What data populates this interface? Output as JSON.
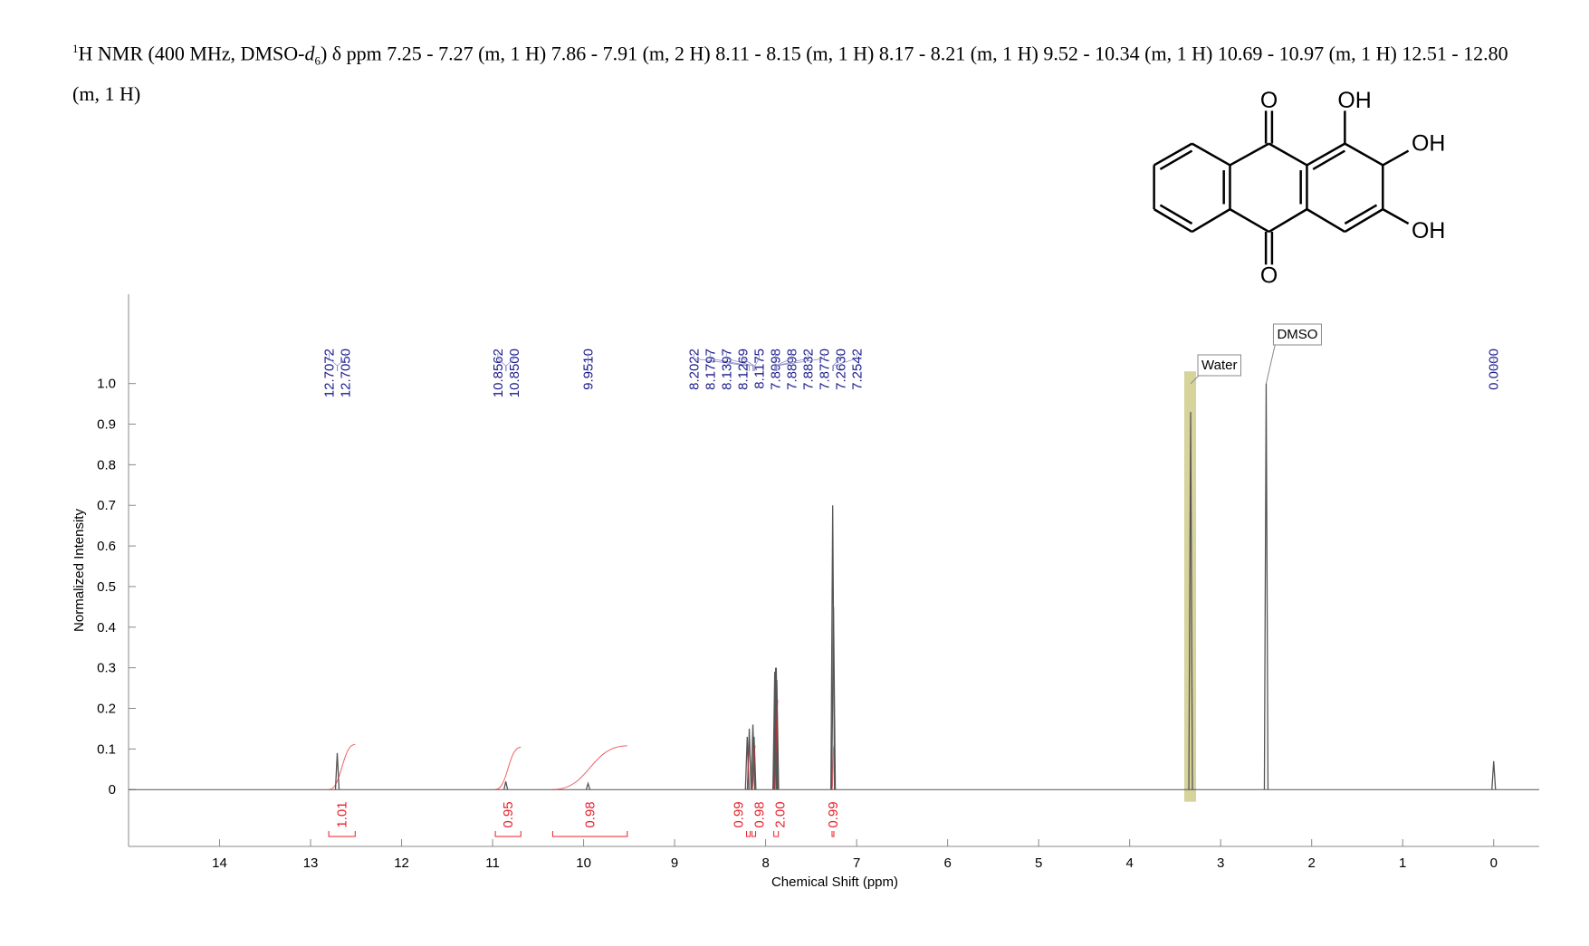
{
  "header": {
    "mass": "1",
    "text_1": "H NMR (400 MHz, DMSO-",
    "italic": "d",
    "subscript": "6",
    "text_2": ") δ ppm 7.25 - 7.27 (m, 1 H) 7.86 - 7.91 (m, 2 H) 8.11 - 8.15 (m, 1 H) 8.17 - 8.21 (m, 1 H) 9.52 - 10.34 (m, 1 H) 10.69 - 10.97 (m, 1 H) 12.51 - 12.80 (m, 1 H)"
  },
  "structure": {
    "atoms": [
      "O",
      "OH",
      "OH",
      "OH",
      "O"
    ]
  },
  "chart_data": {
    "type": "nmr",
    "x_label": "Chemical Shift (ppm)",
    "y_label": "Normalized Intensity",
    "xlim": [
      15,
      -0.5
    ],
    "xticks": [
      14,
      13,
      12,
      11,
      10,
      9,
      8,
      7,
      6,
      5,
      4,
      3,
      2,
      1,
      0
    ],
    "ylim": [
      -0.14,
      1.22
    ],
    "yticks": [
      0,
      0.1,
      0.2,
      0.3,
      0.4,
      0.5,
      0.6,
      0.7,
      0.8,
      0.9,
      {
        "value": 1,
        "label": "1.0"
      }
    ],
    "color": "#555555",
    "peaks": {
      "x": [
        12.707,
        10.855,
        9.951,
        8.2022,
        8.1797,
        8.1397,
        8.1269,
        7.8998,
        7.8898,
        7.8832,
        7.877,
        7.263,
        7.2542,
        3.33,
        2.5,
        0
      ],
      "values": [
        0.09,
        0.02,
        0.015,
        0.13,
        0.15,
        0.16,
        0.13,
        0.29,
        0.3,
        0.3,
        0.27,
        0.7,
        0.45,
        0.93,
        1.0,
        0.07
      ]
    },
    "peak_labels": {
      "color": "#1a1a8c",
      "items": [
        {
          "value": 12.7072,
          "label": "12.7072"
        },
        {
          "value": 12.705,
          "label": "12.7050"
        },
        {
          "value": 10.8562,
          "label": "10.8562"
        },
        {
          "value": 10.85,
          "label": "10.8500"
        },
        {
          "value": 9.951,
          "label": "9.9510"
        },
        {
          "value": 8.2022,
          "label": "8.2022"
        },
        {
          "value": 8.1797,
          "label": "8.1797"
        },
        {
          "value": 8.1397,
          "label": "8.1397"
        },
        {
          "value": 8.1269,
          "label": "8.1269"
        },
        {
          "value": 8.1175,
          "label": "8.1175"
        },
        {
          "value": 7.8998,
          "label": "7.8998"
        },
        {
          "value": 7.8898,
          "label": "7.8898"
        },
        {
          "value": 7.8832,
          "label": "7.8832"
        },
        {
          "value": 7.877,
          "label": "7.8770"
        },
        {
          "value": 7.263,
          "label": "7.2630"
        },
        {
          "value": 7.2542,
          "label": "7.2542"
        },
        {
          "value": 0,
          "label": "0.0000"
        }
      ]
    },
    "integrals": {
      "color": "#e8202a",
      "ranges": [
        [
          12.8,
          12.51
        ],
        [
          10.97,
          10.69
        ],
        [
          10.34,
          9.52
        ],
        [
          8.21,
          8.17
        ],
        [
          8.15,
          8.11
        ],
        [
          7.91,
          7.86
        ],
        [
          7.27,
          7.25
        ]
      ],
      "values": [
        1.01,
        0.95,
        0.98,
        0.99,
        0.98,
        2.0,
        0.99
      ],
      "value_labels": [
        "1.01",
        "0.95",
        "0.98",
        "0.99",
        "0.98",
        "2.00",
        "0.99"
      ]
    },
    "annotations": [
      {
        "label": "Water",
        "x": 3.33,
        "range": [
          3.4,
          3.27
        ],
        "band_color": "#c8c47a"
      },
      {
        "label": "DMSO",
        "x": 2.5
      }
    ]
  }
}
